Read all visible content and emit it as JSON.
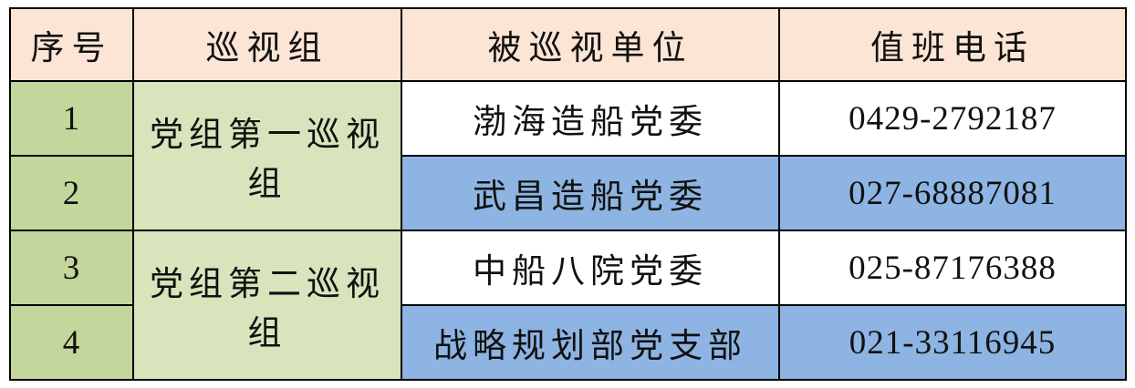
{
  "table": {
    "headers": {
      "index": "序号",
      "group": "巡视组",
      "unit": "被巡视单位",
      "phone": "值班电话"
    },
    "groups": [
      {
        "name": "党组第一巡视组",
        "rows": [
          {
            "index": "1",
            "unit": "渤海造船党委",
            "phone": "0429-2792187"
          },
          {
            "index": "2",
            "unit": "武昌造船党委",
            "phone": "027-68887081"
          }
        ]
      },
      {
        "name": "党组第二巡视组",
        "rows": [
          {
            "index": "3",
            "unit": "中船八院党委",
            "phone": "025-87176388"
          },
          {
            "index": "4",
            "unit": "战略规划部党支部",
            "phone": "021-33116945"
          }
        ]
      }
    ],
    "colors": {
      "header_bg": "#fce5d5",
      "index_column_bg": "#c3d69b",
      "group_column_bg": "#d8e4bc",
      "row_white_bg": "#ffffff",
      "row_blue_bg": "#8db4e2",
      "border": "#000000"
    }
  }
}
